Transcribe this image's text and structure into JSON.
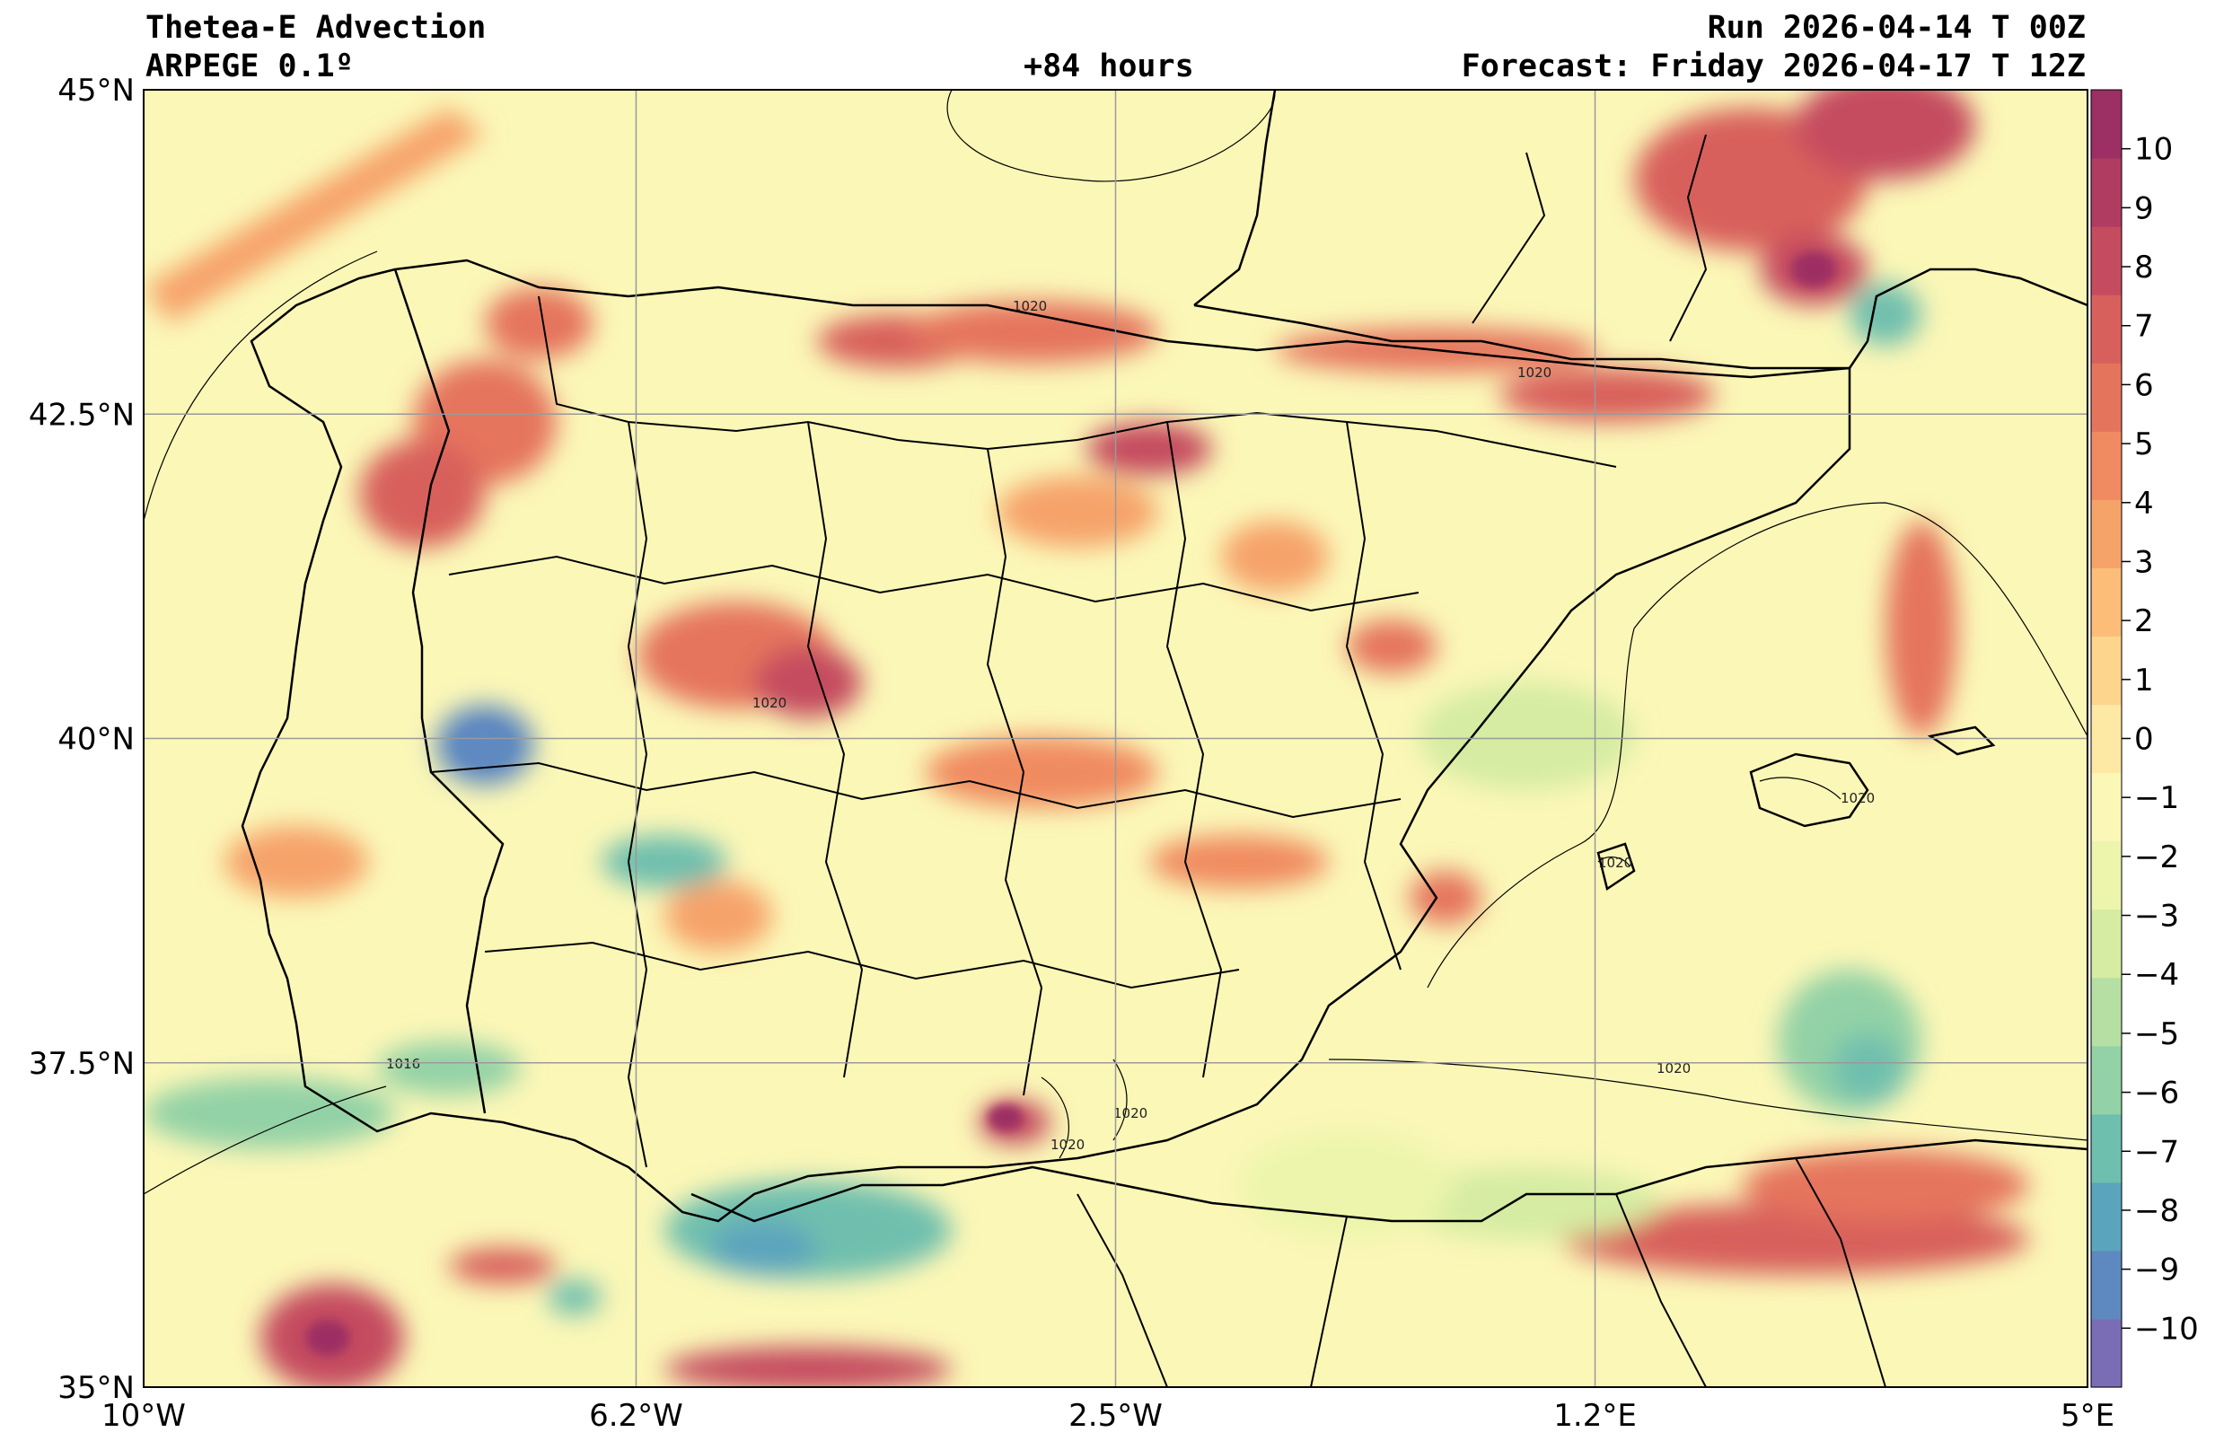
{
  "header": {
    "title": "Thetea-E Advection",
    "model": "ARPEGE 0.1º",
    "lead": "+84 hours",
    "run": "Run 2026-04-14 T 00Z",
    "forecast": "Forecast: Friday 2026-04-17 T 12Z"
  },
  "map": {
    "extent": {
      "lon_min": -10,
      "lon_max": 5,
      "lat_min": 35,
      "lat_max": 45
    },
    "lat_ticks": [
      {
        "value": 45,
        "label": "45°N"
      },
      {
        "value": 42.5,
        "label": "42.5°N"
      },
      {
        "value": 40,
        "label": "40°N"
      },
      {
        "value": 37.5,
        "label": "37.5°N"
      },
      {
        "value": 35,
        "label": "35°N"
      }
    ],
    "lon_ticks": [
      {
        "value": -10,
        "label": "10°W"
      },
      {
        "value": -6.2,
        "label": "6.2°W"
      },
      {
        "value": -2.5,
        "label": "2.5°W"
      },
      {
        "value": 1.2,
        "label": "1.2°E"
      },
      {
        "value": 5,
        "label": "5°E"
      }
    ],
    "background_color": "#fbf7b7",
    "isobar_labels": [
      "1020",
      "1020",
      "1020",
      "1020",
      "1020",
      "1020",
      "1020",
      "1020",
      "1016"
    ]
  },
  "colorbar": {
    "min": -11,
    "max": 11,
    "labels": [
      "10",
      "9",
      "8",
      "7",
      "6",
      "5",
      "4",
      "3",
      "2",
      "1",
      "0",
      "−1",
      "−2",
      "−3",
      "−4",
      "−5",
      "−6",
      "−7",
      "−8",
      "−9",
      "−10"
    ],
    "colors": [
      "#7b6cb6",
      "#5e89c0",
      "#5ba4bd",
      "#6fbfae",
      "#93d2a6",
      "#b6e0a3",
      "#d5eca2",
      "#ecf5ab",
      "#fbf7b7",
      "#fde8a4",
      "#fdd58c",
      "#fbbd78",
      "#f6a36a",
      "#f08b61",
      "#e5745d",
      "#d8605c",
      "#c54c5e",
      "#b03c62",
      "#9c2f63"
    ]
  }
}
